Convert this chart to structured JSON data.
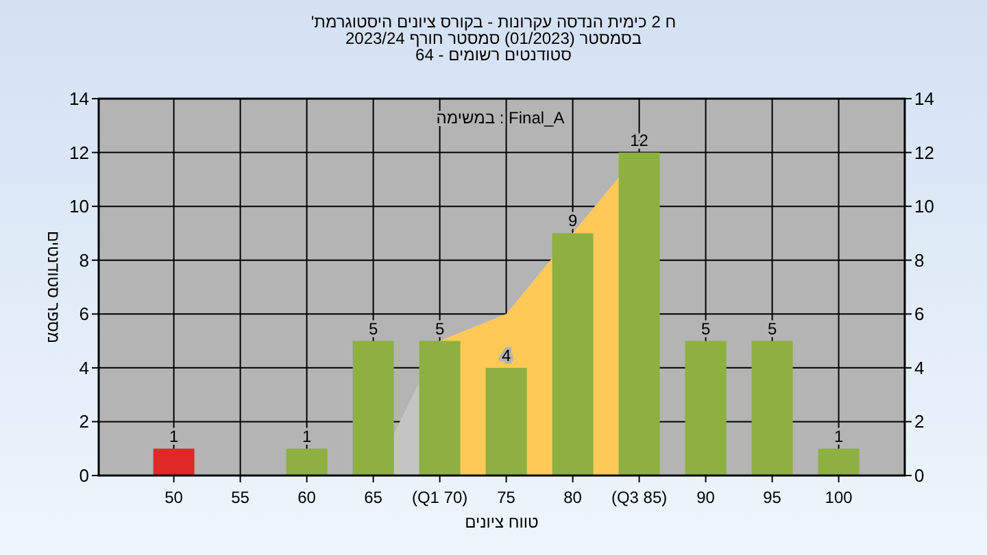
{
  "chart_data": {
    "type": "bar",
    "title": "ח 2 כימית הנדסה עקרונות - בקורס ציונים היסטוגרמת'",
    "subtitle": [
      "בסמסטר (01/2023) סמסטר חורף 2023/24",
      "סטודנטים רשומים - 64"
    ],
    "xlabel": "טווח ציונים",
    "ylabel": "מספר סטודנטים",
    "annotations": [
      "Final_A : במשימה"
    ],
    "categories": [
      "50",
      "55",
      "60",
      "65",
      "(Q1 70)",
      "75",
      "80",
      "(Q3 85)",
      "90",
      "95",
      "100"
    ],
    "series": [
      {
        "type": "area",
        "color": "#c4c4c4",
        "values": [
          null,
          null,
          null,
          0,
          5,
          6,
          null,
          12,
          null,
          null,
          null
        ]
      },
      {
        "type": "area",
        "color": "#ffc957",
        "values": [
          null,
          null,
          null,
          null,
          5,
          6,
          null,
          12,
          null,
          null,
          null
        ]
      },
      {
        "type": "bar",
        "colors": [
          "#e02828",
          "#8db040",
          "#8db040",
          "#8db040",
          "#8db040",
          "#8db040",
          "#8db040",
          "#8db040",
          "#8db040",
          "#8db040",
          "#8db040"
        ],
        "values": [
          1,
          0,
          1,
          5,
          5,
          4,
          9,
          12,
          5,
          5,
          1
        ],
        "value_labels": [
          "1",
          null,
          "1",
          "5",
          "5",
          "4",
          "9",
          "12",
          "5",
          "5",
          "1"
        ]
      }
    ],
    "ylim": [
      0,
      14
    ],
    "yticks": [
      0,
      2,
      4,
      6,
      8,
      10,
      12,
      14
    ],
    "y2lim": [
      0,
      14
    ],
    "y2ticks": [
      0,
      2,
      4,
      6,
      8,
      10,
      12,
      14
    ],
    "grid": true
  }
}
